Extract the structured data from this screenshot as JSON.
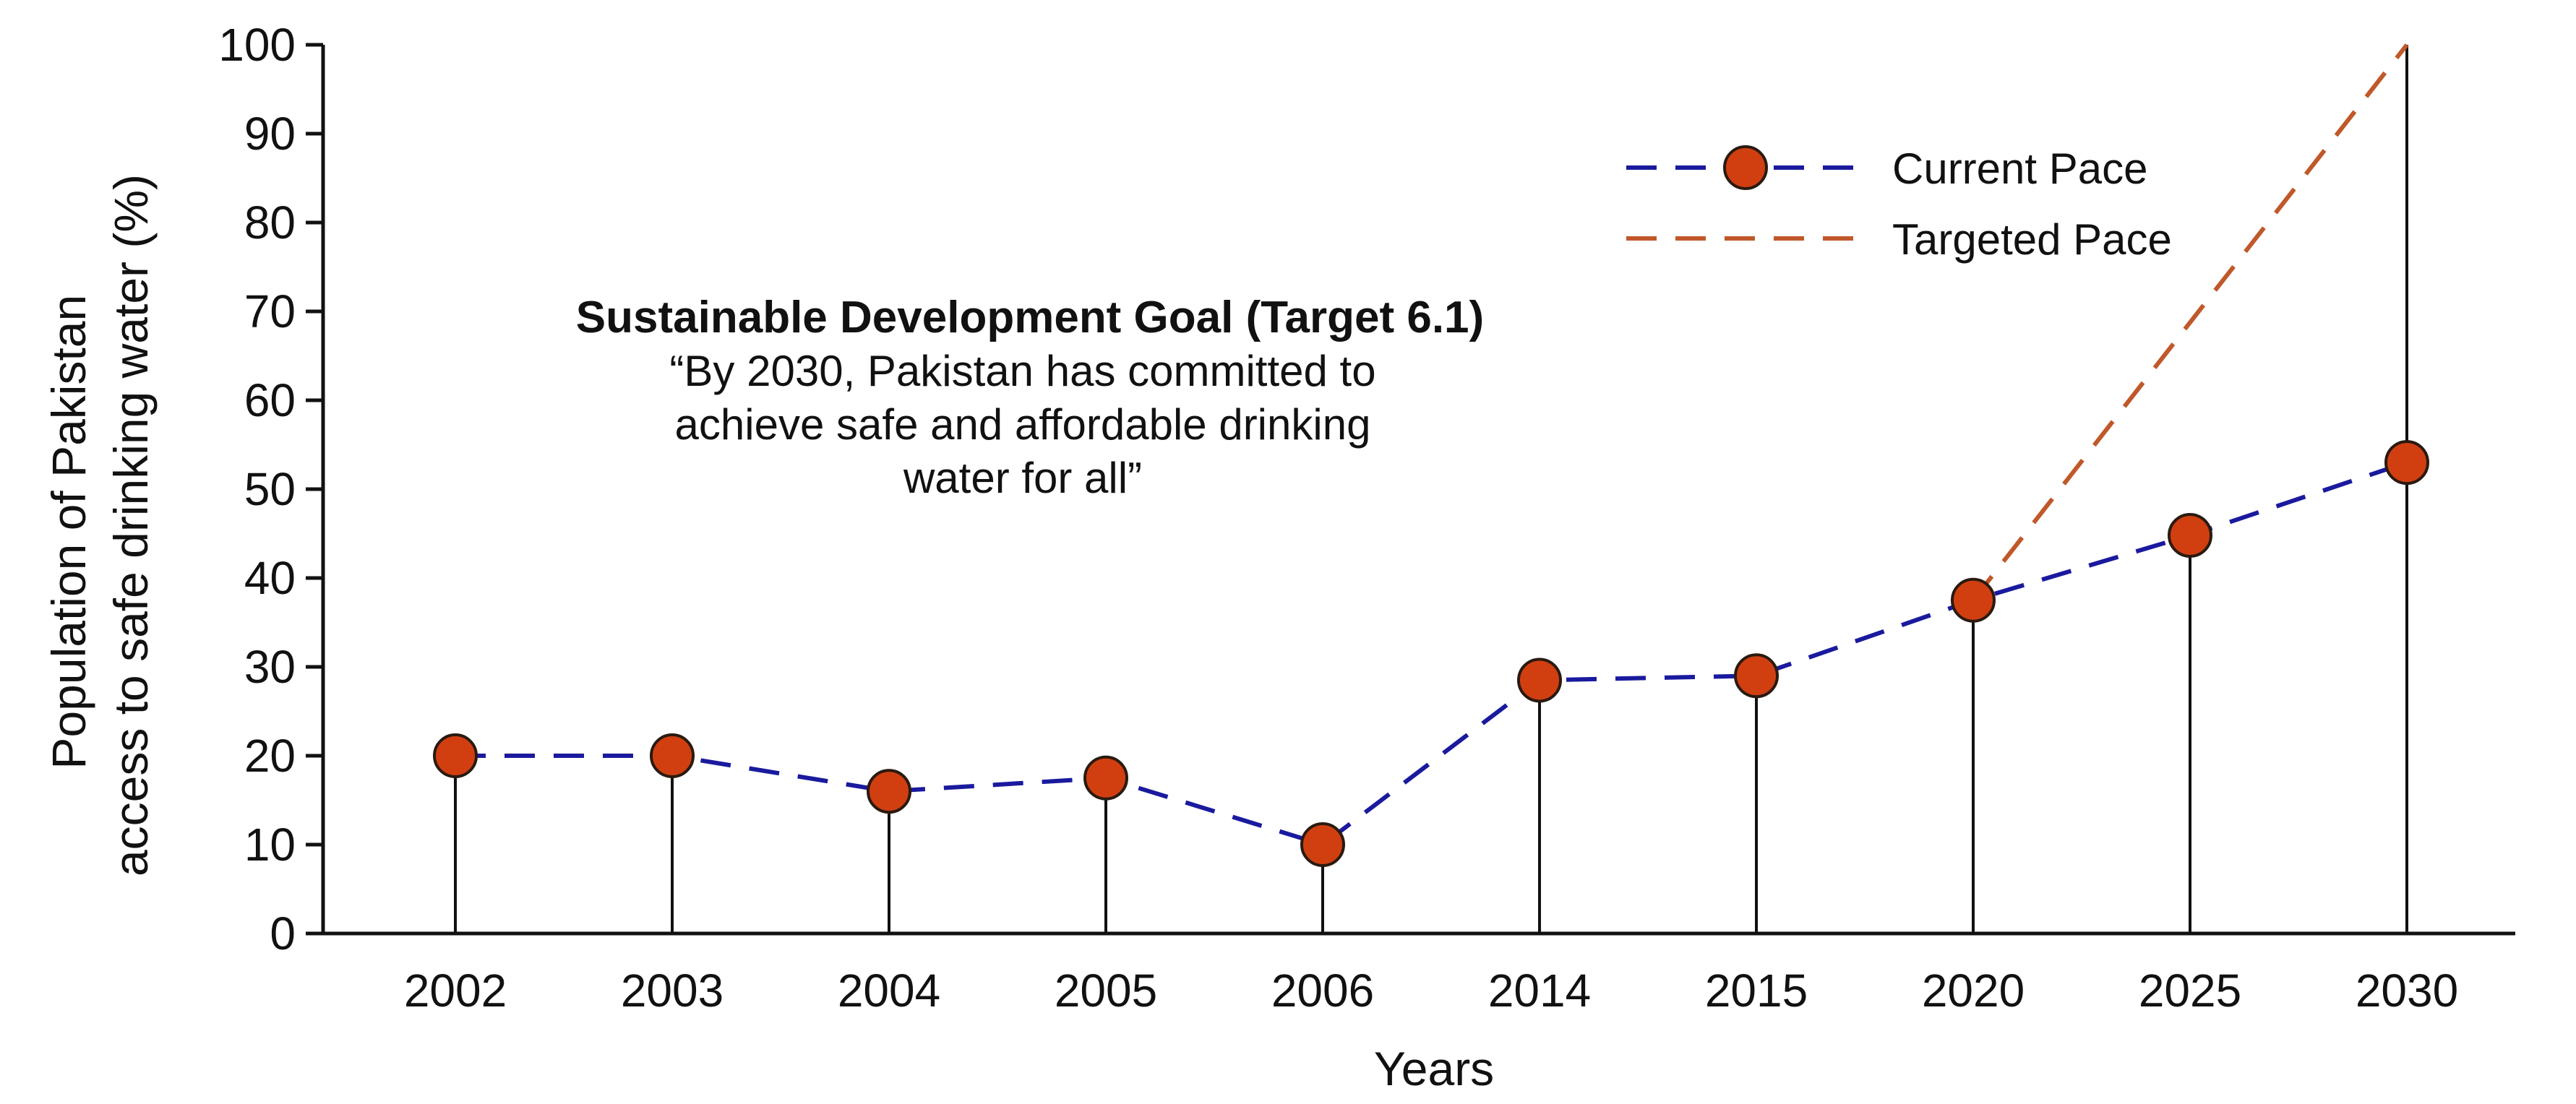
{
  "chart_data": {
    "type": "line",
    "categories": [
      "2002",
      "2003",
      "2004",
      "2005",
      "2006",
      "2014",
      "2015",
      "2020",
      "2025",
      "2030"
    ],
    "series": [
      {
        "name": "Current Pace",
        "values": [
          20,
          20,
          16,
          17.5,
          10,
          28.5,
          29,
          37.5,
          44.8,
          53
        ],
        "color": "#1a1a9e",
        "marker_color": "#d13f10"
      },
      {
        "name": "Targeted Pace",
        "points": [
          [
            "2020",
            37.5
          ],
          [
            "2030",
            100
          ]
        ],
        "color": "#c0582a"
      }
    ],
    "xlabel": "Years",
    "ylabel_line1": "Population of Pakistan",
    "ylabel_line2": "access to safe drinking water (%)",
    "ylim": [
      0,
      100
    ],
    "yticks": [
      0,
      10,
      20,
      30,
      40,
      50,
      60,
      70,
      80,
      90,
      100
    ],
    "legend_position": "top-right",
    "annotation": {
      "title": "Sustainable Development Goal (Target 6.1)",
      "lines": [
        "“By 2030, Pakistan has committed to",
        "achieve safe and affordable drinking",
        "water for all”"
      ]
    }
  }
}
